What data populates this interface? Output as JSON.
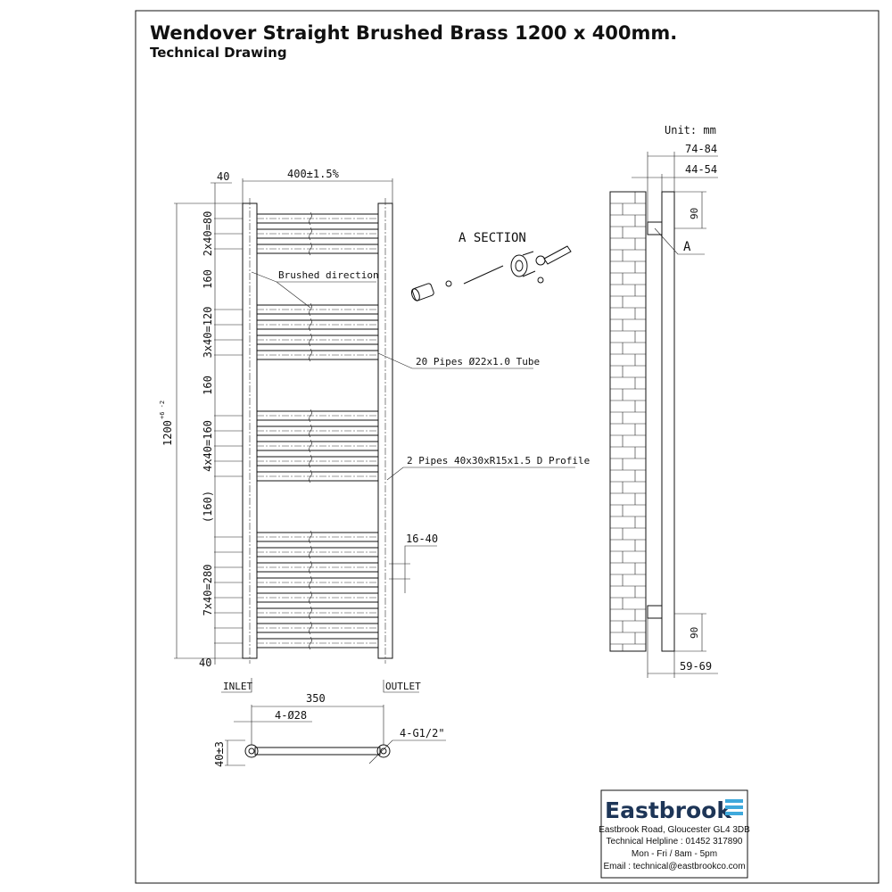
{
  "header": {
    "title": "Wendover Straight Brushed Brass 1200 x 400mm.",
    "subtitle": "Technical Drawing"
  },
  "front_view": {
    "width_dim": "400±1.5%",
    "top_offset": "40",
    "bottom_offset": "40",
    "height_dim": "1200",
    "height_tol": "+6 -2",
    "groups": [
      "2x40=80",
      "160",
      "3x40=120",
      "160",
      "4x40=160",
      "(160)",
      "7x40=280"
    ],
    "pipe_positions_mm": [
      40,
      80,
      120,
      280,
      320,
      360,
      400,
      560,
      600,
      640,
      680,
      720,
      880,
      920,
      960,
      1000,
      1040,
      1080,
      1120,
      1160
    ],
    "brushed_label": "Brushed direction",
    "pipes_label": "20 Pipes Ø22x1.0 Tube",
    "profile_label": "2 Pipes 40x30xR15x1.5 D Profile",
    "range_label": "16-40"
  },
  "section": {
    "label": "A SECTION"
  },
  "side_view": {
    "unit": "Unit: mm",
    "dim_outer": "74-84",
    "dim_inner": "44-54",
    "top_bracket": "90",
    "bottom_bracket": "90",
    "bottom_dim": "59-69",
    "section_marker": "A"
  },
  "bottom_view": {
    "inlet": "INLET",
    "outlet": "OUTLET",
    "centres": "350",
    "diameter": "4-Ø28",
    "thread": "4-G1/2\"",
    "depth": "40±3"
  },
  "contact": {
    "brand": "Eastbrook",
    "brand_color": "#1d3557",
    "accent_color": "#3fa9dc",
    "address": "Eastbrook Road, Gloucester GL4 3DB",
    "helpline": "Technical Helpline : 01452 317890",
    "hours": "Mon - Fri / 8am - 5pm",
    "email": "Email : technical@eastbrookco.com"
  }
}
